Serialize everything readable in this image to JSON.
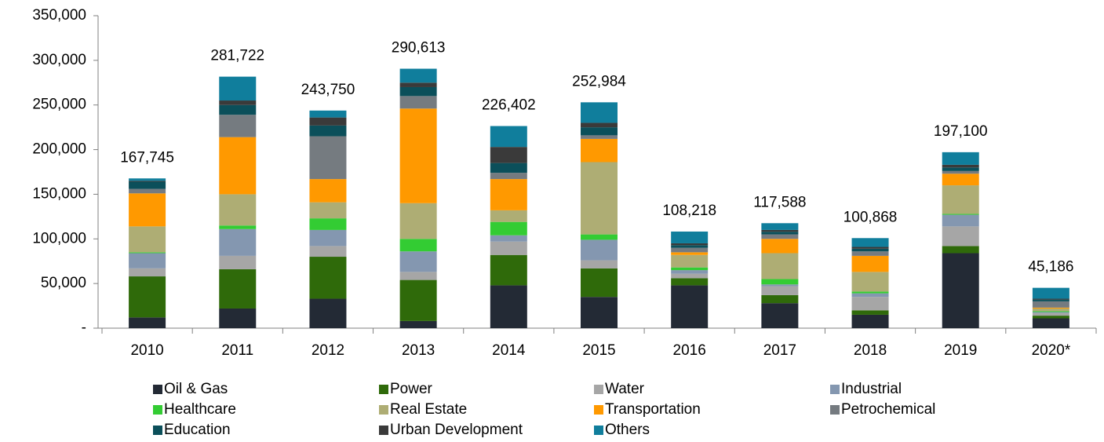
{
  "chart_data": {
    "type": "stacked_bar",
    "categories": [
      "2010",
      "2011",
      "2012",
      "2013",
      "2014",
      "2015",
      "2016",
      "2017",
      "2018",
      "2019",
      "2020*"
    ],
    "series": [
      {
        "name": "Oil & Gas",
        "color": "#232a35",
        "values": [
          12000,
          22000,
          33000,
          8000,
          48000,
          35000,
          48000,
          28000,
          15000,
          84000,
          11000
        ]
      },
      {
        "name": "Power",
        "color": "#2f6a0a",
        "values": [
          46000,
          44000,
          47000,
          46000,
          34000,
          32000,
          8000,
          9000,
          5000,
          8000,
          3000
        ]
      },
      {
        "name": "Water",
        "color": "#a6a6a6",
        "values": [
          9000,
          15000,
          12000,
          9000,
          15000,
          9000,
          5000,
          10000,
          15000,
          22000,
          3000
        ]
      },
      {
        "name": "Industrial",
        "color": "#8497b0",
        "values": [
          17000,
          30000,
          18000,
          23000,
          7000,
          23000,
          4000,
          2000,
          4000,
          13000,
          1000
        ]
      },
      {
        "name": "Healthcare",
        "color": "#33cc33",
        "values": [
          1000,
          4000,
          13000,
          14000,
          15000,
          6000,
          3000,
          6000,
          2000,
          1000,
          1000
        ]
      },
      {
        "name": "Real Estate",
        "color": "#aead74",
        "values": [
          29000,
          35000,
          18000,
          40000,
          13000,
          81000,
          14000,
          29000,
          22000,
          32000,
          3000
        ]
      },
      {
        "name": "Transportation",
        "color": "#ff9900",
        "values": [
          37000,
          64000,
          26000,
          106000,
          35000,
          26000,
          3000,
          16000,
          18000,
          13000,
          1000
        ]
      },
      {
        "name": "Petrochemical",
        "color": "#757b80",
        "values": [
          5000,
          25000,
          48000,
          14000,
          7000,
          4000,
          5000,
          5000,
          5000,
          3000,
          7000
        ]
      },
      {
        "name": "Education",
        "color": "#0b4f5a",
        "values": [
          8000,
          11000,
          12000,
          10000,
          11000,
          9000,
          3000,
          3000,
          3000,
          4000,
          2000
        ]
      },
      {
        "name": "Urban Development",
        "color": "#3a3a3a",
        "values": [
          1000,
          5000,
          9000,
          5000,
          18000,
          5000,
          2000,
          2000,
          2000,
          3000,
          1000
        ]
      },
      {
        "name": "Others",
        "color": "#107e9c",
        "values": [
          2745,
          26722,
          7750,
          15613,
          23402,
          22984,
          13218,
          7588,
          9868,
          14100,
          12186
        ]
      }
    ],
    "totals": [
      167745,
      281722,
      243750,
      290613,
      226402,
      252984,
      108218,
      117588,
      100868,
      197100,
      45186
    ],
    "total_labels": [
      "167,745",
      "281,722",
      "243,750",
      "290,613",
      "226,402",
      "252,984",
      "108,218",
      "117,588",
      "100,868",
      "197,100",
      "45,186"
    ],
    "ylim": [
      0,
      350000
    ],
    "yticks": [
      {
        "value": 0,
        "label": "-"
      },
      {
        "value": 50000,
        "label": "50,000"
      },
      {
        "value": 100000,
        "label": "100,000"
      },
      {
        "value": 150000,
        "label": "150,000"
      },
      {
        "value": 200000,
        "label": "200,000"
      },
      {
        "value": 250000,
        "label": "250,000"
      },
      {
        "value": 300000,
        "label": "300,000"
      },
      {
        "value": 350000,
        "label": "350,000"
      }
    ],
    "legend": "bottom"
  }
}
